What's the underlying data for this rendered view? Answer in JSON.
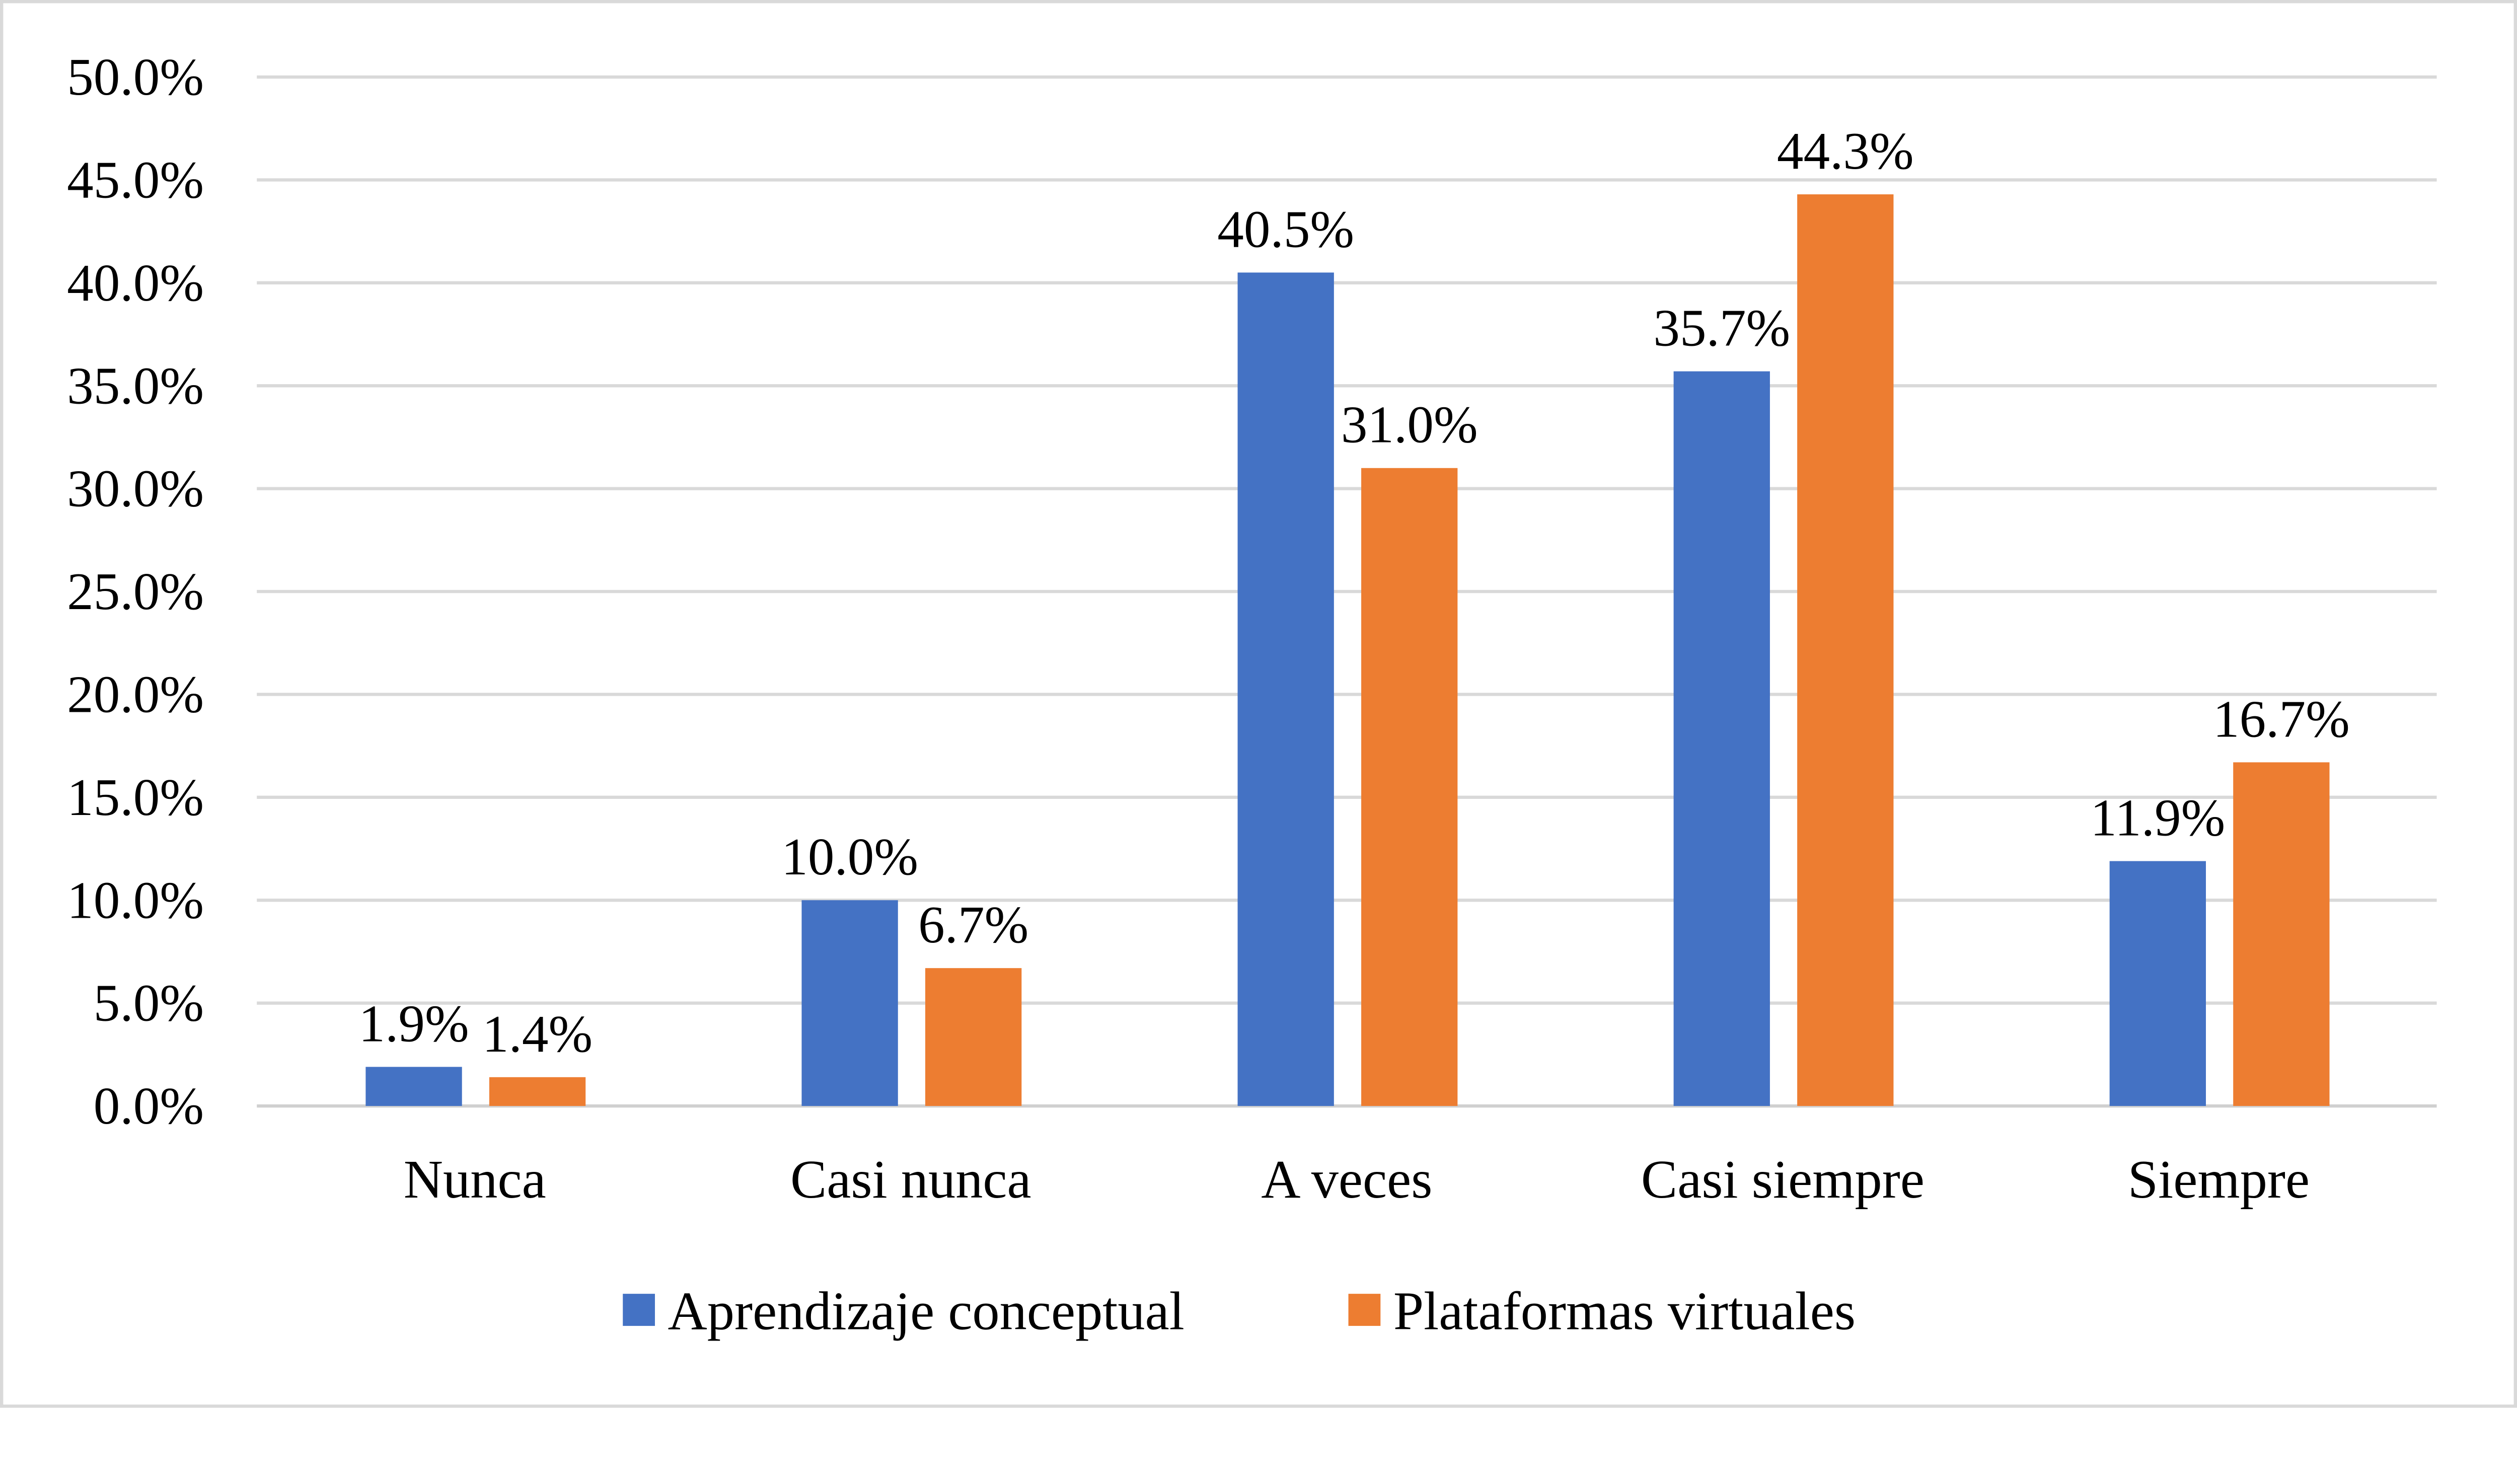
{
  "chart_data": {
    "type": "bar",
    "title": "",
    "xlabel": "",
    "ylabel": "",
    "categories": [
      "Nunca",
      "Casi nunca",
      "A veces",
      "Casi siempre",
      "Siempre"
    ],
    "series": [
      {
        "name": "Aprendizaje conceptual",
        "color": "#4472C4",
        "values": [
          1.9,
          10.0,
          40.5,
          35.7,
          11.9
        ]
      },
      {
        "name": "Plataformas virtuales",
        "color": "#ED7D31",
        "values": [
          1.4,
          6.7,
          31.0,
          44.3,
          16.7
        ]
      }
    ],
    "ylim": [
      0,
      50
    ],
    "yticks": [
      0,
      5,
      10,
      15,
      20,
      25,
      30,
      35,
      40,
      45,
      50
    ],
    "value_format": "percent, 1 decimal",
    "grid": true,
    "legend_position": "bottom"
  }
}
